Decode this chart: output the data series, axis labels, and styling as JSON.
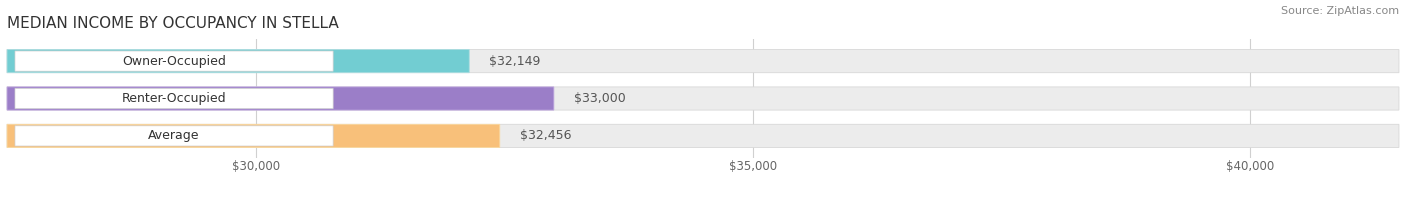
{
  "title": "MEDIAN INCOME BY OCCUPANCY IN STELLA",
  "source": "Source: ZipAtlas.com",
  "categories": [
    "Owner-Occupied",
    "Renter-Occupied",
    "Average"
  ],
  "values": [
    32149,
    33000,
    32456
  ],
  "labels": [
    "$32,149",
    "$33,000",
    "$32,456"
  ],
  "bar_colors": [
    "#72cdd2",
    "#9b7ec8",
    "#f8c07a"
  ],
  "bar_edge_colors": [
    "#aadde0",
    "#c0a8e0",
    "#fad9a0"
  ],
  "xlim_min": 27500,
  "xlim_max": 41500,
  "xticks": [
    30000,
    35000,
    40000
  ],
  "xtick_labels": [
    "$30,000",
    "$35,000",
    "$40,000"
  ],
  "bg_color": "#ffffff",
  "bar_bg_color": "#ececec",
  "bar_bg_edge": "#d8d8d8",
  "title_fontsize": 11,
  "label_fontsize": 9,
  "tick_fontsize": 8.5,
  "source_fontsize": 8
}
